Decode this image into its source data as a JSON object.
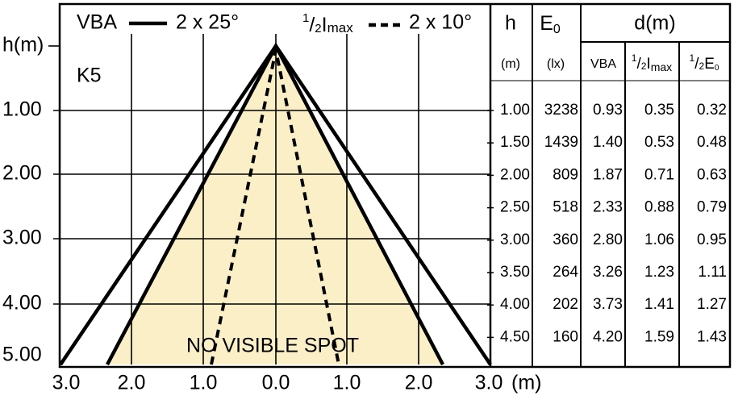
{
  "legend": {
    "solid_name": "VBA",
    "solid_label": "2 x 25°",
    "dashed_name": {
      "num": "1",
      "slash": "/",
      "den": "2",
      "main": "I",
      "sub": "max"
    },
    "dashed_label": "2 x 10°"
  },
  "chart": {
    "y_axis_label": "h(m)",
    "lamp": "K5",
    "note": "NO VISIBLE SPOT",
    "y_ticks": [
      "1.00",
      "2.00",
      "3.00",
      "4.00",
      "5.00"
    ],
    "x_ticks": [
      "3.0",
      "2.0",
      "1.0",
      "0.0",
      "1.0",
      "2.0",
      "3.0"
    ],
    "x_unit": "(m)"
  },
  "table": {
    "headers": {
      "h": "h",
      "e": {
        "main": "E",
        "sub": "0"
      },
      "d": "d(m)"
    },
    "units": {
      "h": "(m)",
      "e": "(lx)",
      "vba": "VBA",
      "imax": {
        "num": "1",
        "slash": "/",
        "den": "2",
        "main": "I",
        "sub": "max"
      },
      "e0": {
        "num": "1",
        "slash": "/",
        "den": "2",
        "main": "E",
        "sub": "0"
      }
    },
    "rows": [
      [
        "1.00",
        "3238",
        "0.93",
        "0.35",
        "0.32"
      ],
      [
        "1.50",
        "1439",
        "1.40",
        "0.53",
        "0.48"
      ],
      [
        "2.00",
        "809",
        "1.87",
        "0.71",
        "0.63"
      ],
      [
        "2.50",
        "518",
        "2.33",
        "0.88",
        "0.79"
      ],
      [
        "3.00",
        "360",
        "2.80",
        "1.06",
        "0.95"
      ],
      [
        "3.50",
        "264",
        "3.26",
        "1.23",
        "1.11"
      ],
      [
        "4.00",
        "202",
        "3.73",
        "1.41",
        "1.27"
      ],
      [
        "4.50",
        "160",
        "4.20",
        "1.59",
        "1.43"
      ]
    ]
  }
}
